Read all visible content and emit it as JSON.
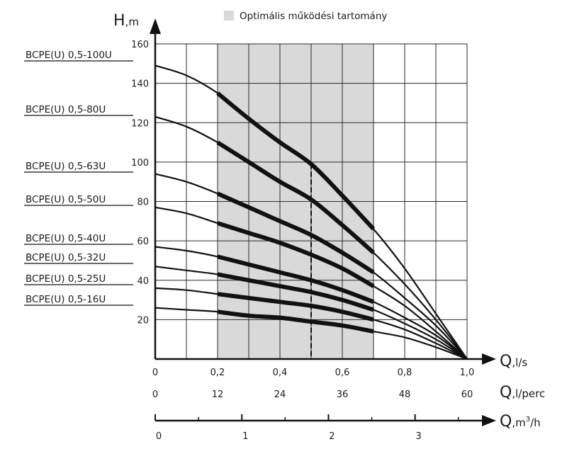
{
  "chart_data": {
    "type": "line",
    "legend": {
      "label": "Optimális működési tartomány",
      "color": "#d9d9d9",
      "placement": "top-center"
    },
    "y_axis": {
      "label_main": "H",
      "label_unit": ",m",
      "ylim": [
        0,
        160
      ],
      "ticks": [
        "20",
        "40",
        "60",
        "80",
        "100",
        "120",
        "140",
        "160"
      ]
    },
    "x_axis": {
      "label_main": "Q",
      "label_unit": ",l/s",
      "xlim": [
        0,
        1.0
      ],
      "ticks": [
        "0",
        "0,2",
        "0,4",
        "0,6",
        "0,8",
        "1,0"
      ]
    },
    "x_axis_lpm": {
      "label_main": "Q",
      "label_unit": ",l/perc",
      "ticks": [
        "0",
        "12",
        "24",
        "36",
        "48",
        "60"
      ]
    },
    "x_axis_m3h": {
      "label_main": "Q",
      "label_unit": ",m",
      "label_sup": "3",
      "label_tail": "/h",
      "ticks": [
        "0",
        "1",
        "2",
        "3"
      ]
    },
    "grid": true,
    "optimal_range": {
      "from": 0.2,
      "to": 0.7
    },
    "reference_line": {
      "x": 0.5,
      "style": "dashed"
    },
    "series": [
      {
        "name": "BCPE(U) 0,5-100U",
        "x": [
          0,
          0.1,
          0.2,
          0.3,
          0.4,
          0.5,
          0.6,
          0.7,
          0.8,
          0.9,
          1.0
        ],
        "values": [
          149,
          144,
          135,
          122,
          110,
          99,
          83,
          66,
          46,
          23,
          0
        ]
      },
      {
        "name": "BCPE(U) 0,5-80U",
        "x": [
          0,
          0.1,
          0.2,
          0.3,
          0.4,
          0.5,
          0.6,
          0.7,
          0.8,
          0.9,
          1.0
        ],
        "values": [
          123,
          118,
          110,
          100,
          90,
          81,
          68,
          54,
          38,
          20,
          0
        ]
      },
      {
        "name": "BCPE(U) 0,5-63U",
        "x": [
          0,
          0.1,
          0.2,
          0.3,
          0.4,
          0.5,
          0.6,
          0.7,
          0.8,
          0.9,
          1.0
        ],
        "values": [
          94,
          90,
          84,
          77,
          70,
          63,
          54,
          44,
          31,
          17,
          0
        ]
      },
      {
        "name": "BCPE(U) 0,5-50U",
        "x": [
          0,
          0.1,
          0.2,
          0.3,
          0.4,
          0.5,
          0.6,
          0.7,
          0.8,
          0.9,
          1.0
        ],
        "values": [
          77,
          74,
          69,
          64,
          59,
          53,
          46,
          37,
          27,
          14,
          0
        ]
      },
      {
        "name": "BCPE(U) 0,5-40U",
        "x": [
          0,
          0.1,
          0.2,
          0.3,
          0.4,
          0.5,
          0.6,
          0.7,
          0.8,
          0.9,
          1.0
        ],
        "values": [
          57,
          55,
          52,
          48,
          44,
          40,
          35,
          29,
          21,
          12,
          0
        ]
      },
      {
        "name": "BCPE(U) 0,5-32U",
        "x": [
          0,
          0.1,
          0.2,
          0.3,
          0.4,
          0.5,
          0.6,
          0.7,
          0.8,
          0.9,
          1.0
        ],
        "values": [
          47,
          45,
          43,
          40,
          37,
          34,
          30,
          25,
          18,
          10,
          0
        ]
      },
      {
        "name": "BCPE(U) 0,5-25U",
        "x": [
          0,
          0.1,
          0.2,
          0.3,
          0.4,
          0.5,
          0.6,
          0.7,
          0.8,
          0.9,
          1.0
        ],
        "values": [
          36,
          35,
          33,
          31,
          29,
          27,
          24,
          20,
          15,
          8,
          0
        ]
      },
      {
        "name": "BCPE(U) 0,5-16U",
        "x": [
          0,
          0.1,
          0.2,
          0.3,
          0.4,
          0.5,
          0.6,
          0.7,
          0.8,
          0.9,
          1.0
        ],
        "values": [
          26,
          25,
          24,
          22,
          21,
          19,
          17,
          14,
          11,
          6,
          0
        ]
      }
    ]
  }
}
